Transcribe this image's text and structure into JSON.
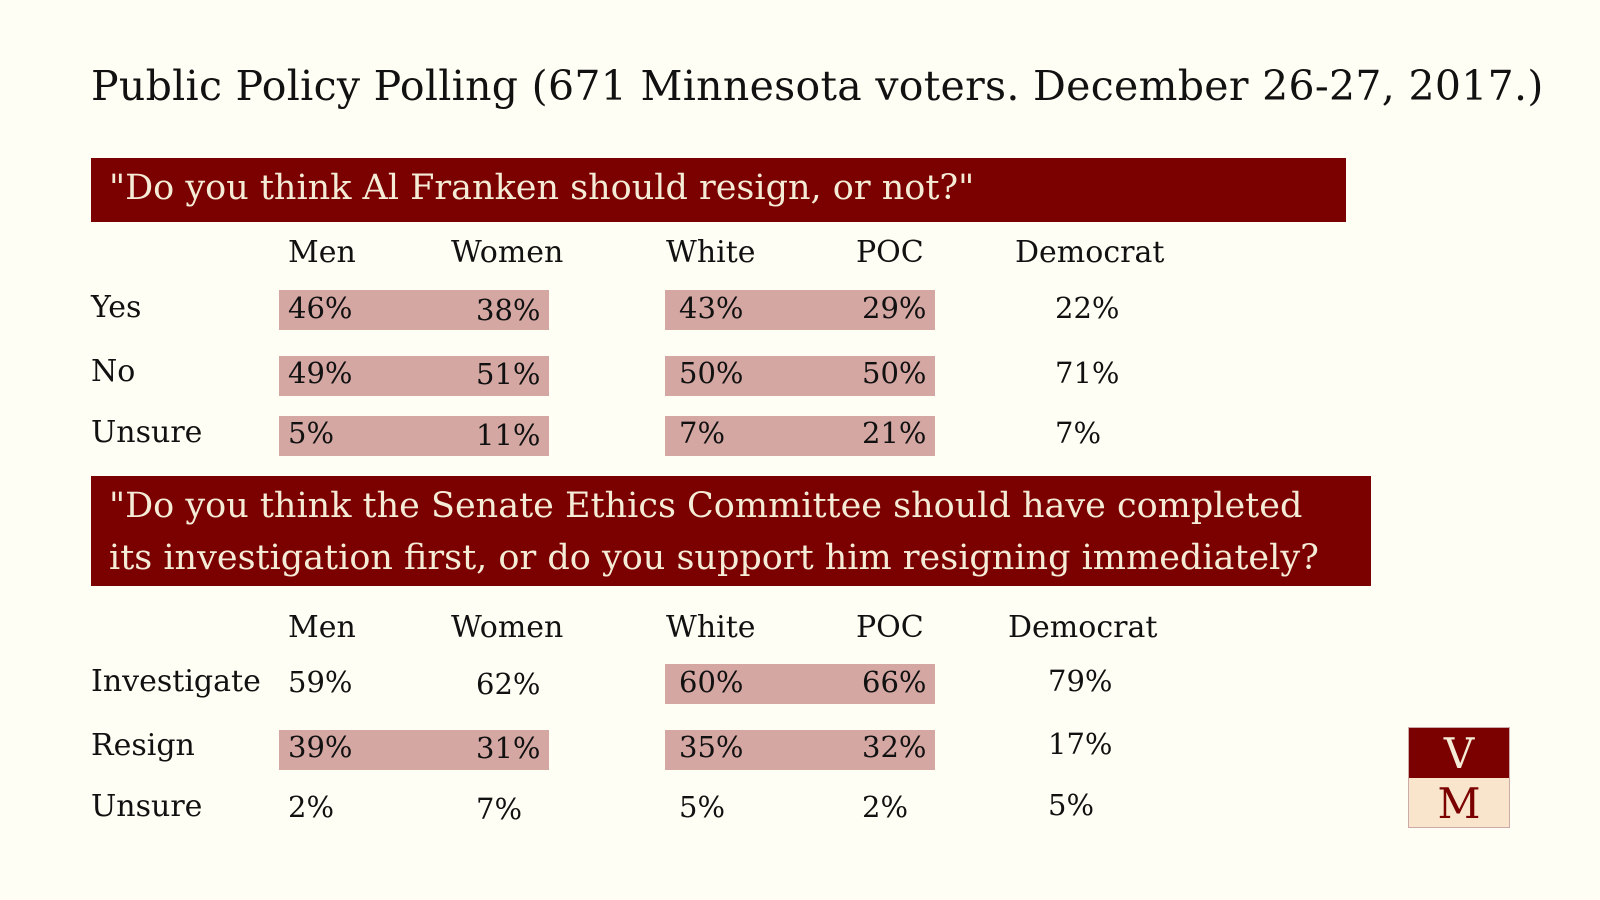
{
  "title": "Public Policy Polling (671 Minnesota voters. December 26-27, 2017.)",
  "columns": [
    "Men",
    "Women",
    "White",
    "POC",
    "Democrat"
  ],
  "q1": {
    "question": "\"Do you think Al Franken should resign, or not?\"",
    "rows": [
      {
        "label": "Yes",
        "values": [
          "46%",
          "38%",
          "43%",
          "29%",
          "22%"
        ]
      },
      {
        "label": "No",
        "values": [
          "49%",
          "51%",
          "50%",
          "50%",
          "71%"
        ]
      },
      {
        "label": "Unsure",
        "values": [
          "5%",
          "11%",
          "7%",
          "21%",
          "7%"
        ]
      }
    ]
  },
  "q2": {
    "question": "\"Do you think the Senate Ethics Committee should have completed its investigation first, or do you support him resigning immediately?",
    "rows": [
      {
        "label": "Investigate",
        "values": [
          "59%",
          "62%",
          "60%",
          "66%",
          "79%"
        ]
      },
      {
        "label": "Resign",
        "values": [
          "39%",
          "31%",
          "35%",
          "32%",
          "17%"
        ]
      },
      {
        "label": "Unsure",
        "values": [
          "2%",
          "7%",
          "5%",
          "2%",
          "5%"
        ]
      }
    ]
  },
  "logo": {
    "top": "V",
    "bottom": "M"
  },
  "colors": {
    "banner": "#7b0000",
    "highlight": "#d4a7a3",
    "background": "#fffef4"
  }
}
